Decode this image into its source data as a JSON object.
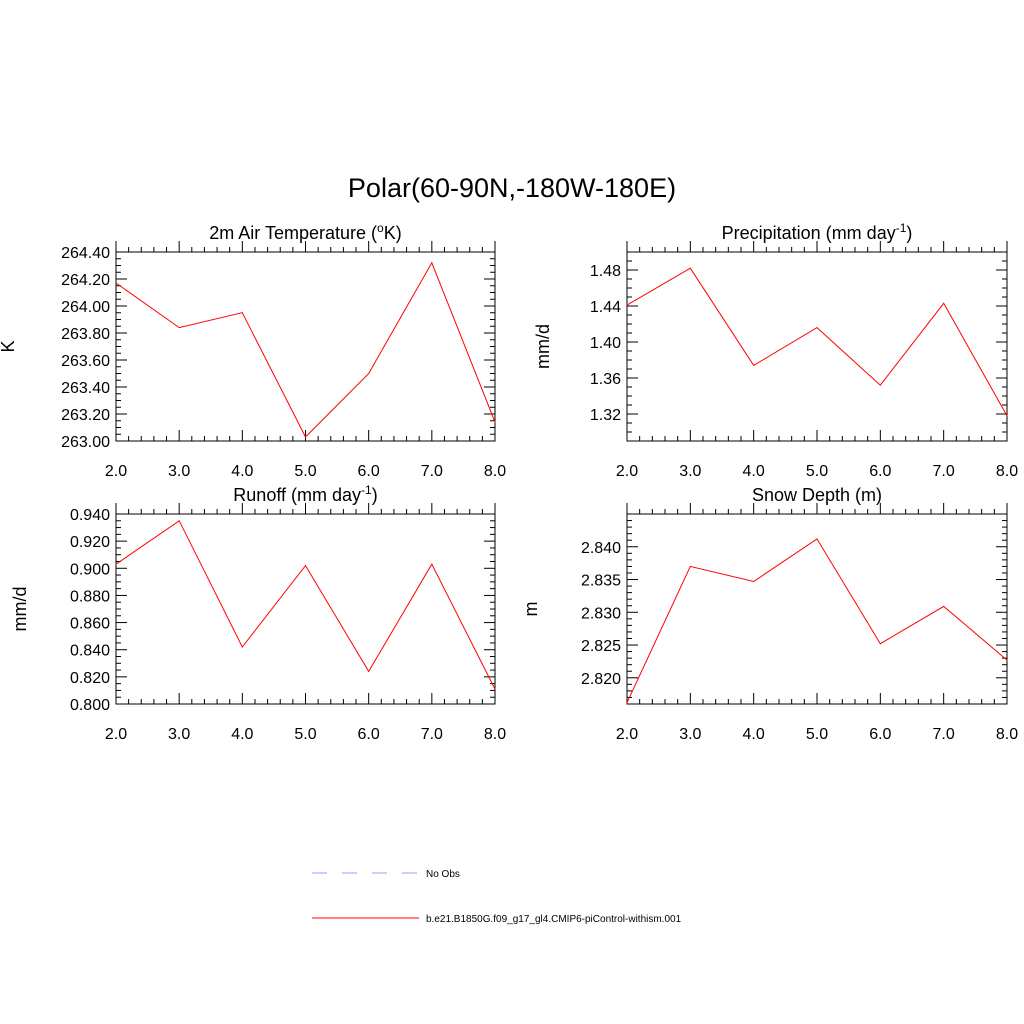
{
  "figure": {
    "title": "Polar(60-90N,-180W-180E)",
    "line_color": "#ff0000",
    "obs_color": "#9999ff"
  },
  "legend": {
    "entries": [
      {
        "label": "No Obs",
        "style": "dashed",
        "color": "#9999ff"
      },
      {
        "label": "b.e21.B1850G.f09_g17_gl4.CMIP6-piControl-withism.001",
        "style": "solid",
        "color": "#ff0000"
      }
    ]
  },
  "chart_data": [
    {
      "type": "line",
      "title": "2m Air Temperature",
      "title_unit_pre": " (",
      "title_sup_pre": "o",
      "title_unit": "K",
      "title_sup": "",
      "title_unit_post": ")",
      "ylabel": "K",
      "x": [
        2.0,
        3.0,
        4.0,
        5.0,
        6.0,
        7.0,
        8.0
      ],
      "series": [
        {
          "name": "b.e21.B1850G.f09_g17_gl4.CMIP6-piControl-withism.001",
          "values": [
            264.17,
            263.84,
            263.95,
            263.03,
            263.5,
            264.32,
            263.14
          ]
        }
      ],
      "xlim": [
        2.0,
        8.0
      ],
      "ylim": [
        263.0,
        264.4
      ],
      "xticks": [
        2.0,
        3.0,
        4.0,
        5.0,
        6.0,
        7.0,
        8.0
      ],
      "xtick_labels": [
        "2.0",
        "3.0",
        "4.0",
        "5.0",
        "6.0",
        "7.0",
        "8.0"
      ],
      "yticks": [
        263.0,
        263.2,
        263.4,
        263.6,
        263.8,
        264.0,
        264.2,
        264.4
      ],
      "ytick_labels": [
        "263.00",
        "263.20",
        "263.40",
        "263.60",
        "263.80",
        "264.00",
        "264.20",
        "264.40"
      ],
      "y_minor_step": 0.05
    },
    {
      "type": "line",
      "title": "Precipitation",
      "title_unit_pre": " (",
      "title_sup_pre": "",
      "title_unit": "mm day",
      "title_sup": "-1",
      "title_unit_post": ")",
      "ylabel": "mm/d",
      "x": [
        2.0,
        3.0,
        4.0,
        5.0,
        6.0,
        7.0,
        8.0
      ],
      "series": [
        {
          "name": "b.e21.B1850G.f09_g17_gl4.CMIP6-piControl-withism.001",
          "values": [
            1.441,
            1.482,
            1.374,
            1.416,
            1.352,
            1.443,
            1.318
          ]
        }
      ],
      "xlim": [
        2.0,
        8.0
      ],
      "ylim": [
        1.29,
        1.5
      ],
      "xticks": [
        2.0,
        3.0,
        4.0,
        5.0,
        6.0,
        7.0,
        8.0
      ],
      "xtick_labels": [
        "2.0",
        "3.0",
        "4.0",
        "5.0",
        "6.0",
        "7.0",
        "8.0"
      ],
      "yticks": [
        1.32,
        1.36,
        1.4,
        1.44,
        1.48
      ],
      "ytick_labels": [
        "1.32",
        "1.36",
        "1.40",
        "1.44",
        "1.48"
      ],
      "y_minor_step": 0.01
    },
    {
      "type": "line",
      "title": "Runoff",
      "title_unit_pre": " (",
      "title_sup_pre": "",
      "title_unit": "mm day",
      "title_sup": "-1",
      "title_unit_post": ")",
      "ylabel": "mm/d",
      "x": [
        2.0,
        3.0,
        4.0,
        5.0,
        6.0,
        7.0,
        8.0
      ],
      "series": [
        {
          "name": "b.e21.B1850G.f09_g17_gl4.CMIP6-piControl-withism.001",
          "values": [
            0.903,
            0.935,
            0.842,
            0.902,
            0.824,
            0.903,
            0.811
          ]
        }
      ],
      "xlim": [
        2.0,
        8.0
      ],
      "ylim": [
        0.8,
        0.94
      ],
      "xticks": [
        2.0,
        3.0,
        4.0,
        5.0,
        6.0,
        7.0,
        8.0
      ],
      "xtick_labels": [
        "2.0",
        "3.0",
        "4.0",
        "5.0",
        "6.0",
        "7.0",
        "8.0"
      ],
      "yticks": [
        0.8,
        0.82,
        0.84,
        0.86,
        0.88,
        0.9,
        0.92,
        0.94
      ],
      "ytick_labels": [
        "0.800",
        "0.820",
        "0.840",
        "0.860",
        "0.880",
        "0.900",
        "0.920",
        "0.940"
      ],
      "y_minor_step": 0.005
    },
    {
      "type": "line",
      "title": "Snow Depth",
      "title_unit_pre": " (",
      "title_sup_pre": "",
      "title_unit": "m",
      "title_sup": "",
      "title_unit_post": ")",
      "ylabel": "m",
      "x": [
        2.0,
        3.0,
        4.0,
        5.0,
        6.0,
        7.0,
        8.0
      ],
      "series": [
        {
          "name": "b.e21.B1850G.f09_g17_gl4.CMIP6-piControl-withism.001",
          "values": [
            2.8162,
            2.837,
            2.8347,
            2.8412,
            2.8252,
            2.8309,
            2.8227
          ]
        }
      ],
      "xlim": [
        2.0,
        8.0
      ],
      "ylim": [
        2.816,
        2.845
      ],
      "xticks": [
        2.0,
        3.0,
        4.0,
        5.0,
        6.0,
        7.0,
        8.0
      ],
      "xtick_labels": [
        "2.0",
        "3.0",
        "4.0",
        "5.0",
        "6.0",
        "7.0",
        "8.0"
      ],
      "yticks": [
        2.82,
        2.825,
        2.83,
        2.835,
        2.84
      ],
      "ytick_labels": [
        "2.820",
        "2.825",
        "2.830",
        "2.835",
        "2.840"
      ],
      "y_minor_step": 0.001
    }
  ]
}
